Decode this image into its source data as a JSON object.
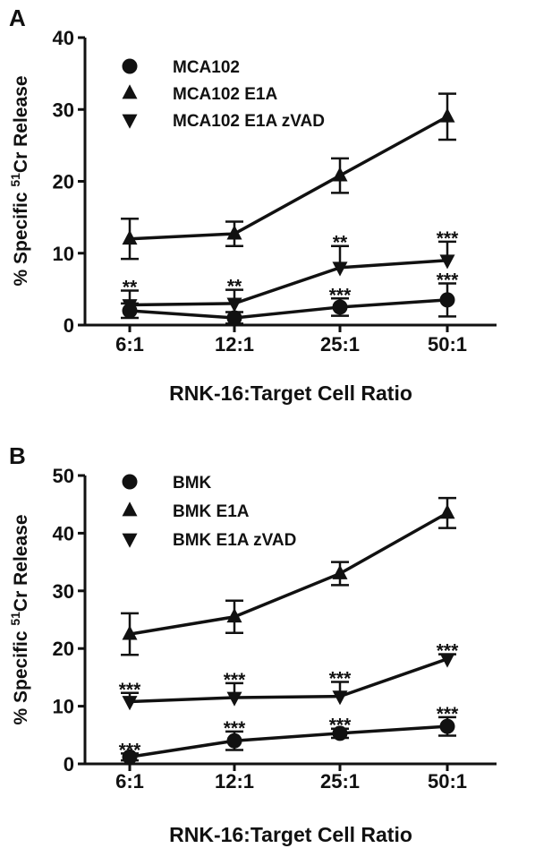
{
  "chart_data": [
    {
      "type": "line",
      "panel_label": "A",
      "categories": [
        "6:1",
        "12:1",
        "25:1",
        "50:1"
      ],
      "xlabel": "RNK-16:Target Cell Ratio",
      "ylabel_pre": "% Specific ",
      "ylabel_sup": "51",
      "ylabel_post": "Cr Release",
      "ylim": [
        0,
        40
      ],
      "yticks": [
        "0",
        "10",
        "20",
        "30",
        "40"
      ],
      "legend_position": "top-left",
      "series": [
        {
          "name": "MCA102",
          "marker": "circle",
          "values": [
            2.0,
            1.0,
            2.5,
            3.5
          ],
          "err": [
            1.0,
            0.8,
            1.2,
            2.3
          ],
          "stars": [
            "",
            "",
            "***",
            "***"
          ]
        },
        {
          "name": "MCA102 E1A",
          "marker": "triangle-up",
          "values": [
            12.0,
            12.7,
            20.8,
            29.0
          ],
          "err": [
            2.8,
            1.7,
            2.4,
            3.2
          ],
          "stars": [
            "",
            "",
            "",
            ""
          ]
        },
        {
          "name": "MCA102 E1A zVAD",
          "marker": "triangle-down",
          "values": [
            2.8,
            3.0,
            8.0,
            9.0
          ],
          "err": [
            2.0,
            1.9,
            3.0,
            2.6
          ],
          "stars": [
            "**",
            "**",
            "**",
            "***"
          ]
        }
      ]
    },
    {
      "type": "line",
      "panel_label": "B",
      "categories": [
        "6:1",
        "12:1",
        "25:1",
        "50:1"
      ],
      "xlabel": "RNK-16:Target Cell Ratio",
      "ylabel_pre": "% Specific ",
      "ylabel_sup": "51",
      "ylabel_post": "Cr Release",
      "ylim": [
        0,
        50
      ],
      "yticks": [
        "0",
        "10",
        "20",
        "30",
        "40",
        "50"
      ],
      "legend_position": "top-left",
      "series": [
        {
          "name": "BMK",
          "marker": "circle",
          "values": [
            1.2,
            4.0,
            5.3,
            6.5
          ],
          "err": [
            0.6,
            1.6,
            0.8,
            1.6
          ],
          "stars": [
            "***",
            "***",
            "***",
            "***"
          ]
        },
        {
          "name": "BMK E1A",
          "marker": "triangle-up",
          "values": [
            22.5,
            25.5,
            33.0,
            43.5
          ],
          "err": [
            3.6,
            2.8,
            2.0,
            2.6
          ],
          "stars": [
            "",
            "",
            "",
            ""
          ]
        },
        {
          "name": "BMK E1A zVAD",
          "marker": "triangle-down",
          "values": [
            10.8,
            11.5,
            11.7,
            18.2
          ],
          "err": [
            1.5,
            2.5,
            2.5,
            0.8
          ],
          "stars": [
            "***",
            "***",
            "***",
            "***"
          ]
        }
      ]
    }
  ]
}
